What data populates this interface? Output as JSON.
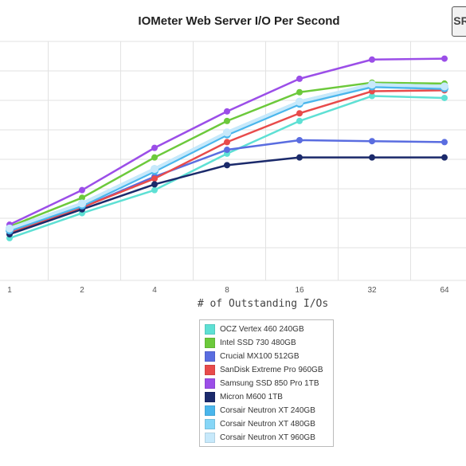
{
  "chart_data": {
    "type": "line",
    "title": "IOMeter Web Server I/O Per Second",
    "xlabel": "# of Outstanding I/Os",
    "ylabel": "",
    "categories": [
      "1",
      "2",
      "4",
      "8",
      "16",
      "32",
      "64"
    ],
    "grid": true,
    "legend_position": "bottom",
    "y_scale": [
      0,
      100
    ],
    "series": [
      {
        "name": "OCZ Vertex 460 240GB",
        "color": "#5ee0d4",
        "values": [
          10,
          23,
          35,
          54,
          71,
          84,
          83
        ]
      },
      {
        "name": "Intel SSD 730 480GB",
        "color": "#6cc93b",
        "values": [
          16,
          31,
          52,
          71,
          86,
          91,
          90.5
        ]
      },
      {
        "name": "Crucial MX100 512GB",
        "color": "#5a6de0",
        "values": [
          14,
          26,
          42,
          56,
          61,
          60.5,
          60
        ]
      },
      {
        "name": "SanDisk Extreme Pro 960GB",
        "color": "#e84b4b",
        "values": [
          13,
          26,
          41,
          60,
          75,
          86.5,
          87
        ]
      },
      {
        "name": "Samsung SSD 850 Pro 1TB",
        "color": "#9b4ee8",
        "values": [
          17,
          35,
          57,
          76,
          93,
          103,
          103.5
        ]
      },
      {
        "name": "Micron M600 1TB",
        "color": "#1b2a6b",
        "values": [
          12,
          25,
          38,
          48,
          52,
          52,
          52
        ]
      },
      {
        "name": "Corsair Neutron XT 240GB",
        "color": "#4ab6ec",
        "values": [
          14,
          27,
          45,
          64,
          80,
          89,
          88
        ]
      },
      {
        "name": "Corsair Neutron XT 480GB",
        "color": "#86d6f7",
        "values": [
          15,
          28,
          46,
          65,
          81,
          90,
          89
        ]
      },
      {
        "name": "Corsair Neutron XT 960GB",
        "color": "#c7e9fb",
        "values": [
          15,
          28,
          46,
          65,
          81,
          90,
          89
        ]
      }
    ]
  },
  "logo_text": "SR"
}
